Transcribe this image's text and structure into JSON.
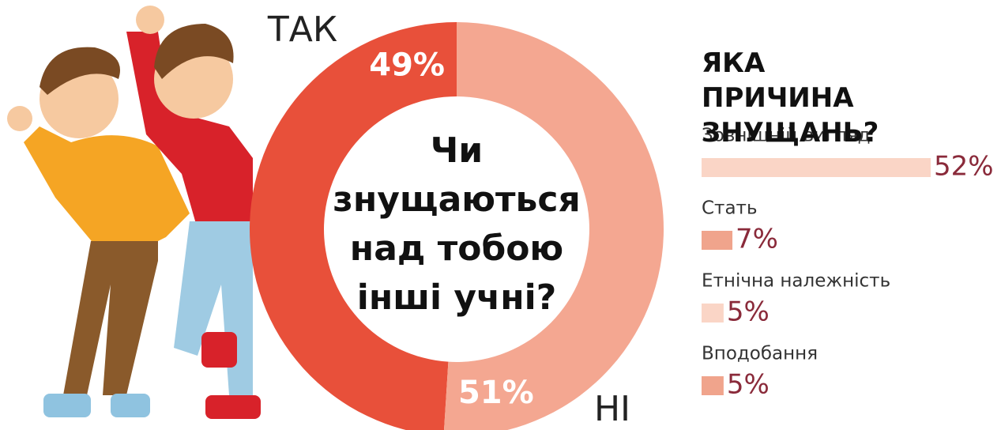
{
  "chart_data": [
    {
      "type": "donut",
      "title": "Чи знущаються над тобою інші учні?",
      "categories": [
        "ТАК",
        "НІ"
      ],
      "values": [
        49,
        51
      ],
      "value_labels": [
        "49%",
        "51%"
      ],
      "colors": [
        "#e8503a",
        "#f4a791"
      ]
    },
    {
      "type": "hbar",
      "title": "ЯКА ПРИЧИНА ЗНУЩАНЬ?",
      "categories": [
        "Зовнішній вигляд",
        "Стать",
        "Етнічна належність",
        "Вподобання"
      ],
      "values": [
        52,
        7,
        5,
        5
      ],
      "value_labels": [
        "52%",
        "7%",
        "5%",
        "5%"
      ],
      "colors": [
        "#fad5c6",
        "#f0a48c",
        "#fad5c6",
        "#f0a48c"
      ]
    }
  ]
}
